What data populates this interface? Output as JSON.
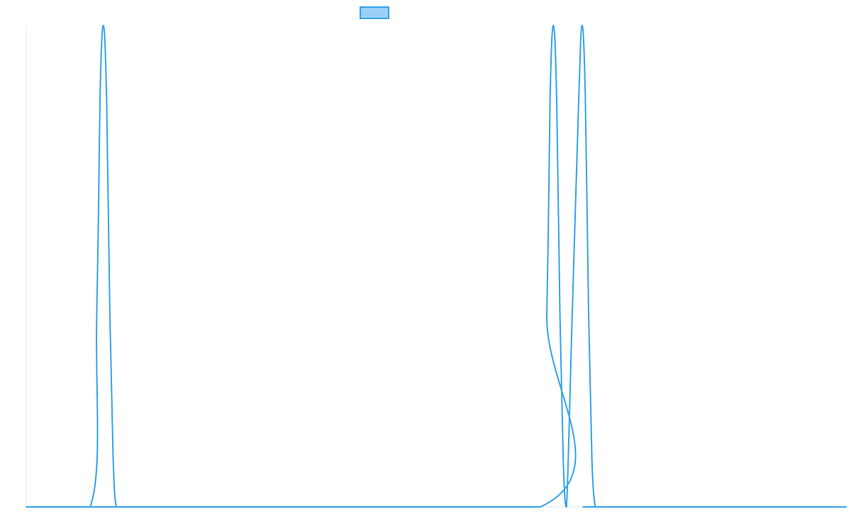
{
  "chart_data": {
    "type": "line",
    "title": "",
    "xlabel": "",
    "ylabel": "",
    "grid": false,
    "legend": "top-center",
    "xlim": [
      0,
      1000
    ],
    "ylim": [
      0,
      1
    ],
    "colors": {
      "line": "#36a2eb",
      "legend_fill": "#9ad0f5",
      "axis": "#e6e6e6"
    },
    "series": [
      {
        "x": [
          0,
          78,
          86,
          90,
          94,
          98,
          102,
          106,
          110,
          118,
          627,
          635,
          639,
          643,
          647,
          651,
          655,
          659,
          666,
          674,
          678,
          682,
          686,
          690,
          694,
          698,
          705,
          1000
        ],
        "y": [
          0,
          0,
          0.4,
          0.85,
          1.0,
          0.85,
          0.4,
          0.1,
          0,
          0,
          0,
          0.4,
          0.85,
          1.0,
          0.85,
          0.4,
          0.1,
          0,
          0.4,
          0.85,
          1.0,
          0.85,
          0.4,
          0.1,
          0,
          0,
          0,
          0
        ]
      }
    ]
  }
}
